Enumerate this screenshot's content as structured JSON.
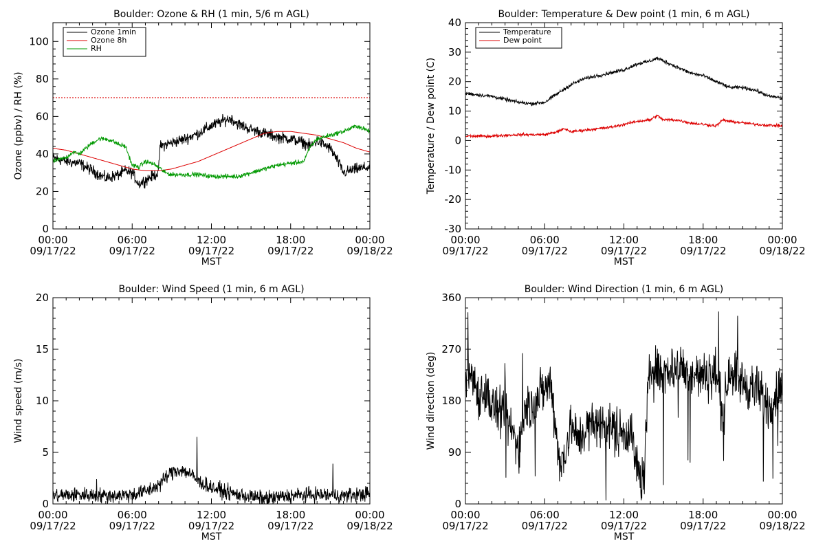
{
  "x_axis": {
    "tick_times": [
      "00:00",
      "06:00",
      "12:00",
      "18:00",
      "00:00"
    ],
    "tick_dates": [
      "09/17/22",
      "09/17/22",
      "09/17/22",
      "09/17/22",
      "09/18/22"
    ],
    "label": "MST",
    "range_hours": [
      0,
      24
    ]
  },
  "chart_data": [
    {
      "id": "ozone",
      "type": "line",
      "title": "Boulder: Ozone & RH (1 min, 5/6 m AGL)",
      "xlabel": "MST",
      "ylabel": "Ozone (ppbv) / RH (%)",
      "xlim": [
        0,
        24
      ],
      "ylim": [
        0,
        110
      ],
      "yticks": [
        0,
        20,
        40,
        60,
        80,
        100
      ],
      "legend_position": "top-left",
      "reference_line": {
        "y": 70,
        "color": "#dd0000",
        "style": "dotted"
      },
      "series": [
        {
          "name": "Ozone 1min",
          "color": "#000000",
          "noise": 2.5,
          "x": [
            0,
            1,
            2,
            3,
            4,
            5,
            5.5,
            6,
            6.5,
            7,
            7.5,
            8,
            8.1,
            9,
            10,
            11,
            12,
            13,
            13.5,
            14,
            15,
            16,
            17,
            18,
            19,
            19.5,
            20,
            21,
            21.5,
            22,
            23,
            24
          ],
          "y": [
            38,
            36,
            35,
            31,
            27,
            29,
            31,
            30,
            24,
            26,
            28,
            30,
            44,
            46,
            48,
            51,
            55,
            58,
            59,
            56,
            53,
            51,
            49,
            48,
            46,
            44,
            47,
            43,
            37,
            30,
            32,
            33
          ]
        },
        {
          "name": "Ozone 8h",
          "color": "#dd0000",
          "noise": 0,
          "x": [
            0,
            1,
            2,
            3,
            4,
            5,
            6,
            7,
            8,
            9,
            10,
            11,
            12,
            13,
            14,
            15,
            16,
            17,
            18,
            19,
            20,
            21,
            22,
            23,
            24
          ],
          "y": [
            43,
            42,
            40,
            38,
            36,
            34,
            32,
            31,
            31,
            32,
            34,
            36,
            39,
            42,
            45,
            48,
            51,
            52,
            52,
            51,
            50,
            48,
            46,
            43,
            41
          ]
        },
        {
          "name": "RH",
          "color": "#009900",
          "noise": 1.0,
          "x": [
            0,
            1,
            1.5,
            2,
            3,
            3.5,
            4,
            4.5,
            5,
            5.5,
            6,
            6.5,
            7,
            7.5,
            8,
            8.5,
            9,
            10,
            11,
            12,
            13,
            14,
            15,
            16,
            17,
            18,
            19,
            19.5,
            20,
            21,
            22,
            23,
            24
          ],
          "y": [
            36,
            38,
            41,
            40,
            46,
            48,
            48,
            47,
            45,
            44,
            34,
            33,
            36,
            35,
            33,
            30,
            29,
            29,
            29,
            28,
            28,
            28,
            30,
            32,
            34,
            35,
            36,
            44,
            48,
            50,
            52,
            55,
            52
          ]
        }
      ]
    },
    {
      "id": "temperature",
      "type": "line",
      "title": "Boulder: Temperature & Dew point (1 min, 6 m AGL)",
      "xlabel": "MST",
      "ylabel": "Temperature / Dew point (C)",
      "xlim": [
        0,
        24
      ],
      "ylim": [
        -30,
        40
      ],
      "yticks": [
        -30,
        -20,
        -10,
        0,
        10,
        20,
        30,
        40
      ],
      "legend_position": "top-left",
      "series": [
        {
          "name": "Temperature",
          "color": "#000000",
          "noise": 0.5,
          "x": [
            0,
            1,
            2,
            3,
            4,
            5,
            6,
            7,
            8,
            9,
            10,
            11,
            12,
            13,
            14,
            14.5,
            15,
            16,
            17,
            18,
            19,
            20,
            21,
            22,
            23,
            24
          ],
          "y": [
            16,
            15.5,
            15,
            14,
            13,
            12.5,
            13,
            16,
            19,
            21,
            22,
            23,
            24,
            26,
            27,
            28,
            27,
            25,
            23,
            22,
            20,
            18,
            18,
            17,
            15,
            14.5
          ]
        },
        {
          "name": "Dew point",
          "color": "#dd0000",
          "noise": 0.4,
          "x": [
            0,
            1,
            2,
            3,
            4,
            5,
            6,
            7,
            7.5,
            8,
            9,
            10,
            11,
            12,
            13,
            14,
            14.5,
            15,
            16,
            17,
            18,
            19,
            19.5,
            20,
            21,
            22,
            23,
            24
          ],
          "y": [
            1.5,
            1.5,
            1.5,
            1.8,
            2,
            2,
            2,
            3,
            4,
            3,
            3.5,
            4,
            4.5,
            5.5,
            6.5,
            7,
            8.5,
            7,
            7,
            6,
            5.5,
            5,
            7,
            6.5,
            6,
            5.5,
            5.2,
            5
          ]
        }
      ]
    },
    {
      "id": "wind_speed",
      "type": "line",
      "title": "Boulder: Wind Speed (1 min, 6 m AGL)",
      "xlabel": "MST",
      "ylabel": "Wind speed (m/s)",
      "xlim": [
        0,
        24
      ],
      "ylim": [
        0,
        20
      ],
      "yticks": [
        0,
        5,
        10,
        15,
        20
      ],
      "series": [
        {
          "name": "",
          "color": "#000000",
          "noise": 0.6,
          "x": [
            0,
            2,
            4,
            6,
            7,
            8,
            8.5,
            9,
            9.5,
            10,
            10.5,
            11,
            12,
            13,
            14,
            16,
            18,
            20,
            22,
            24
          ],
          "y": [
            0.8,
            0.9,
            0.8,
            0.9,
            1.2,
            1.8,
            2.5,
            3.1,
            3.3,
            3.2,
            2.8,
            2.2,
            1.6,
            1.2,
            0.9,
            0.5,
            0.8,
            0.9,
            0.8,
            1.0
          ],
          "spikes": [
            {
              "x": 10.9,
              "y": 6.5
            },
            {
              "x": 21.2,
              "y": 3.9
            },
            {
              "x": 3.3,
              "y": 2.4
            }
          ]
        }
      ]
    },
    {
      "id": "wind_direction",
      "type": "line",
      "title": "Boulder: Wind Direction (1 min, 6 m AGL)",
      "xlabel": "MST",
      "ylabel": "Wind direction (deg)",
      "xlim": [
        0,
        24
      ],
      "ylim": [
        0,
        360
      ],
      "yticks": [
        0,
        90,
        180,
        270,
        360
      ],
      "series": [
        {
          "name": "",
          "color": "#000000",
          "noise": 35,
          "x": [
            0,
            0.5,
            1,
            1.5,
            2,
            2.5,
            3,
            3.5,
            4,
            4.5,
            5,
            5.5,
            6,
            6.5,
            7,
            7.2,
            7.5,
            8,
            8.5,
            9,
            10,
            11,
            12,
            12.5,
            13,
            13.5,
            13.8,
            14,
            15,
            16,
            17,
            18,
            19,
            19.5,
            20,
            21,
            22,
            23,
            24
          ],
          "y": [
            210,
            230,
            190,
            200,
            170,
            160,
            150,
            130,
            100,
            160,
            170,
            190,
            200,
            210,
            100,
            60,
            90,
            140,
            110,
            130,
            140,
            135,
            125,
            130,
            60,
            40,
            180,
            240,
            230,
            240,
            230,
            220,
            230,
            150,
            240,
            210,
            200,
            170,
            210
          ]
        }
      ]
    }
  ]
}
